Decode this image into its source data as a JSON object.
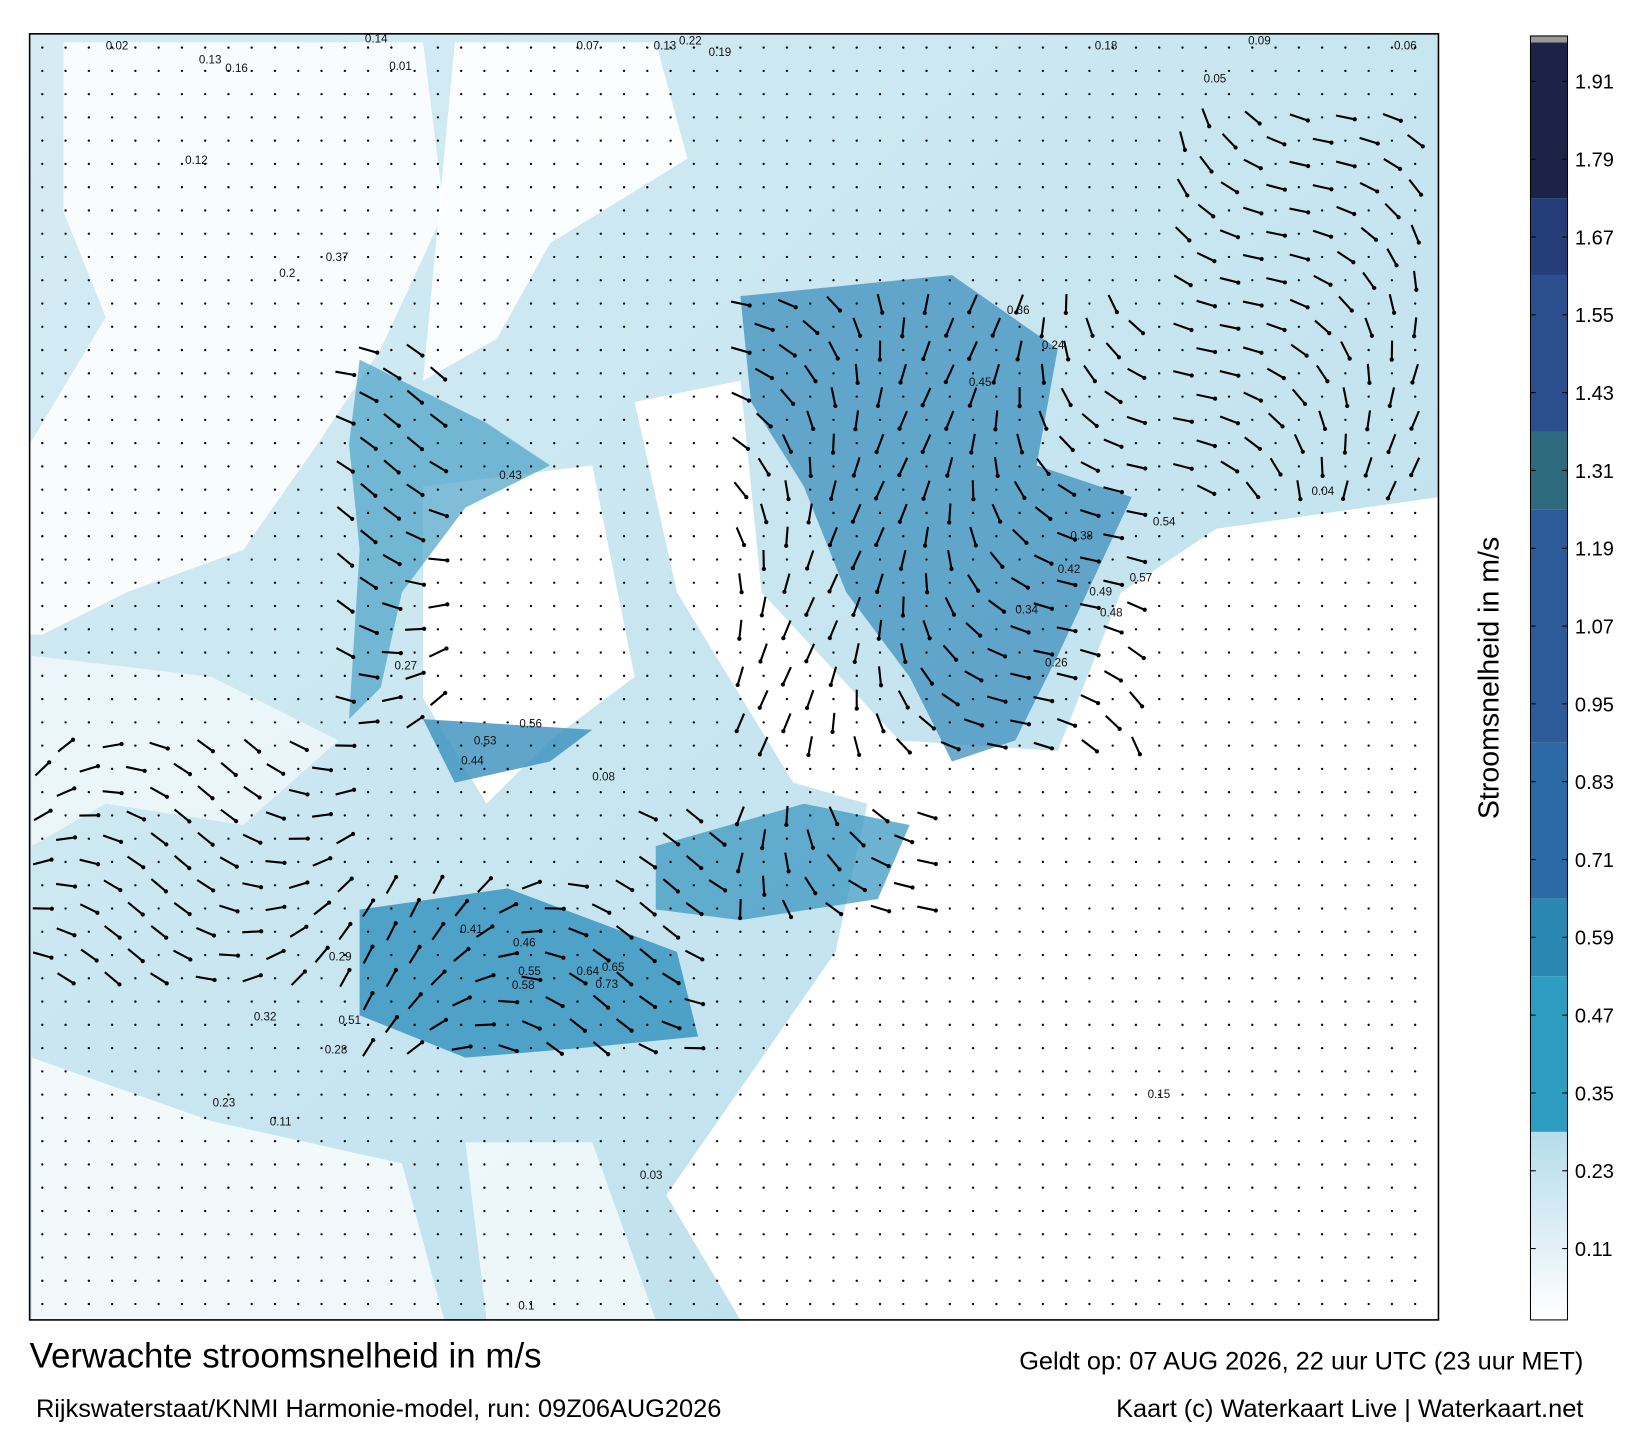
{
  "title": "Verwachte stroomsnelheid in m/s",
  "subtitle": "Rijkswaterstaat/KNMI Harmonie-model, run: 09Z06AUG2026",
  "valid_time": "Geldt op: 07 AUG 2026, 22 uur UTC (23 uur MET)",
  "credit": "Kaart (c) Waterkaart Live | Waterkaart.net",
  "colorbar": {
    "label": "Stroomsnelheid in m/s",
    "clim": [
      0,
      1.98
    ],
    "ticks": [
      0.11,
      0.23,
      0.35,
      0.47,
      0.59,
      0.71,
      0.83,
      0.95,
      1.07,
      1.19,
      1.31,
      1.43,
      1.55,
      1.67,
      1.79,
      1.91
    ],
    "levels": [
      0,
      0.29,
      0.53,
      0.65,
      0.89,
      1.25,
      1.37,
      1.61,
      1.73,
      1.97,
      1.98
    ],
    "colors": [
      "#b5dceb",
      "#2e9dc2",
      "#2a87b2",
      "#2c6aa6",
      "#2d5a98",
      "#2e6a7e",
      "#2b4f8e",
      "#253e7a",
      "#1d2347",
      "#9a9a9a"
    ]
  },
  "map_labels": [
    "0.02",
    "0.13",
    "0.16",
    "0.14",
    "0.07",
    "0.13",
    "0.22",
    "0.19",
    "0.18",
    "0.09",
    "0.05",
    "0.06",
    "0.12",
    "0.2",
    "0.37",
    "0.36",
    "0.43",
    "0.53",
    "0.56",
    "0.44",
    "0.45",
    "0.42",
    "0.34",
    "0.24",
    "0.54",
    "0.57",
    "0.49",
    "0.73",
    "0.64",
    "0.65",
    "0.55",
    "0.58",
    "0.41",
    "0.46",
    "0.28",
    "0.29",
    "0.23",
    "0.26",
    "0.15",
    "0.11",
    "0.01",
    "0.08",
    "0.03",
    "0.1",
    "0.04",
    "0.27",
    "0.32",
    "0.38",
    "0.51",
    "0.48"
  ]
}
